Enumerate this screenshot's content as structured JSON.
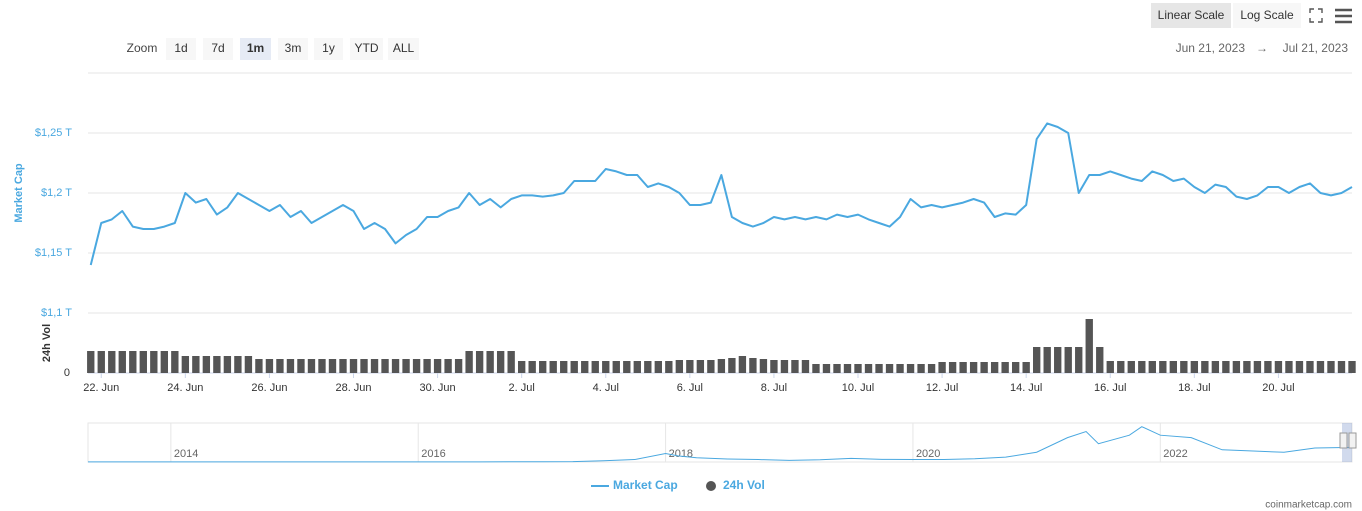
{
  "chart_data": {
    "type": "line",
    "y_title": "Market Cap",
    "y2_title": "24h Vol",
    "categories": [
      null,
      "22. Jun",
      null,
      null,
      null,
      null,
      null,
      null,
      null,
      "24. Jun",
      null,
      null,
      null,
      null,
      null,
      null,
      null,
      "26. Jun",
      null,
      null,
      null,
      null,
      null,
      null,
      null,
      "28. Jun",
      null,
      null,
      null,
      null,
      null,
      null,
      null,
      "30. Jun",
      null,
      null,
      null,
      null,
      null,
      null,
      null,
      "2. Jul",
      null,
      null,
      null,
      null,
      null,
      null,
      null,
      "4. Jul",
      null,
      null,
      null,
      null,
      null,
      null,
      null,
      "6. Jul",
      null,
      null,
      null,
      null,
      null,
      null,
      null,
      "8. Jul",
      null,
      null,
      null,
      null,
      null,
      null,
      null,
      "10. Jul",
      null,
      null,
      null,
      null,
      null,
      null,
      null,
      "12. Jul",
      null,
      null,
      null,
      null,
      null,
      null,
      null,
      "14. Jul",
      null,
      null,
      null,
      null,
      null,
      null,
      null,
      "16. Jul",
      null,
      null,
      null,
      null,
      null,
      null,
      null,
      "18. Jul",
      null,
      null,
      null,
      null,
      null,
      null,
      null,
      "20. Jul",
      null,
      null,
      null,
      null,
      null,
      null,
      null
    ],
    "series": [
      {
        "name": "Market Cap",
        "color": "#4aa8e0",
        "values": [
          1.14,
          1.175,
          1.178,
          1.185,
          1.172,
          1.17,
          1.17,
          1.172,
          1.175,
          1.2,
          1.192,
          1.195,
          1.182,
          1.188,
          1.2,
          1.195,
          1.19,
          1.185,
          1.19,
          1.18,
          1.185,
          1.175,
          1.18,
          1.185,
          1.19,
          1.185,
          1.17,
          1.175,
          1.17,
          1.158,
          1.165,
          1.17,
          1.18,
          1.18,
          1.185,
          1.188,
          1.2,
          1.19,
          1.195,
          1.188,
          1.195,
          1.198,
          1.198,
          1.197,
          1.198,
          1.2,
          1.21,
          1.21,
          1.21,
          1.22,
          1.218,
          1.215,
          1.215,
          1.205,
          1.208,
          1.205,
          1.2,
          1.19,
          1.19,
          1.192,
          1.215,
          1.18,
          1.175,
          1.172,
          1.175,
          1.18,
          1.178,
          1.18,
          1.178,
          1.18,
          1.178,
          1.182,
          1.18,
          1.182,
          1.178,
          1.175,
          1.172,
          1.18,
          1.195,
          1.188,
          1.19,
          1.188,
          1.19,
          1.192,
          1.195,
          1.192,
          1.18,
          1.183,
          1.182,
          1.19,
          1.245,
          1.258,
          1.255,
          1.25,
          1.2,
          1.215,
          1.215,
          1.218,
          1.215,
          1.212,
          1.21,
          1.218,
          1.215,
          1.21,
          1.212,
          1.205,
          1.2,
          1.207,
          1.205,
          1.197,
          1.195,
          1.198,
          1.205,
          1.205,
          1.2,
          1.205,
          1.208,
          1.2,
          1.198,
          1.2,
          1.205
        ]
      },
      {
        "name": "24h Vol",
        "color": "#555555",
        "type": "bar",
        "axis": "y2",
        "values": [
          22,
          22,
          22,
          22,
          22,
          22,
          22,
          22,
          22,
          17,
          17,
          17,
          17,
          17,
          17,
          17,
          14,
          14,
          14,
          14,
          14,
          14,
          14,
          14,
          14,
          14,
          14,
          14,
          14,
          14,
          14,
          14,
          14,
          14,
          14,
          14,
          22,
          22,
          22,
          22,
          22,
          12,
          12,
          12,
          12,
          12,
          12,
          12,
          12,
          12,
          12,
          12,
          12,
          12,
          12,
          12,
          13,
          13,
          13,
          13,
          14,
          15,
          17,
          15,
          14,
          13,
          13,
          13,
          13,
          9,
          9,
          9,
          9,
          9,
          9,
          9,
          9,
          9,
          9,
          9,
          9,
          11,
          11,
          11,
          11,
          11,
          11,
          11,
          11,
          11,
          26,
          26,
          26,
          26,
          26,
          54,
          26,
          12,
          12,
          12,
          12,
          12,
          12,
          12,
          12,
          12,
          12,
          12,
          12,
          12,
          12,
          12,
          12,
          12,
          12,
          12,
          12,
          12,
          12,
          12,
          12
        ]
      }
    ],
    "ylim": [
      1.1,
      1.3
    ],
    "yticks": [
      {
        "value": 1.1,
        "label": "$1,1 T"
      },
      {
        "value": 1.15,
        "label": "$1,15 T"
      },
      {
        "value": 1.2,
        "label": "$1,2 T"
      },
      {
        "value": 1.25,
        "label": "$1,25 T"
      }
    ],
    "y2lim": [
      0,
      60
    ],
    "y2ticks": [
      0
    ],
    "grid": true,
    "navigator": {
      "x": [
        2013.33,
        2013.5,
        2014,
        2014.5,
        2015,
        2015.5,
        2016,
        2016.5,
        2017,
        2017.25,
        2017.5,
        2017.75,
        2018,
        2018.1,
        2018.25,
        2018.5,
        2018.75,
        2019,
        2019.25,
        2019.5,
        2019.75,
        2020,
        2020.25,
        2020.5,
        2020.75,
        2021,
        2021.25,
        2021.4,
        2021.5,
        2021.75,
        2021.85,
        2022,
        2022.25,
        2022.5,
        2022.75,
        2023,
        2023.25,
        2023.55
      ],
      "values": [
        0.01,
        0.01,
        0.012,
        0.008,
        0.006,
        0.006,
        0.01,
        0.012,
        0.02,
        0.03,
        0.1,
        0.2,
        0.7,
        0.5,
        0.35,
        0.25,
        0.2,
        0.13,
        0.18,
        0.3,
        0.22,
        0.2,
        0.2,
        0.27,
        0.4,
        0.8,
        2.0,
        2.5,
        1.5,
        2.2,
        2.9,
        2.2,
        2.0,
        1.0,
        0.9,
        0.8,
        1.15,
        1.2
      ],
      "xlim": [
        2013.33,
        2023.55
      ],
      "xticks": [
        2014,
        2016,
        2018,
        2020,
        2022
      ],
      "ylim": [
        0,
        3.2
      ],
      "color": "#4aa8e0"
    }
  },
  "ui": {
    "scale_buttons": [
      "Linear Scale",
      "Log Scale"
    ],
    "active_scale": 0,
    "zoom_label": "Zoom",
    "zoom_buttons": [
      "1d",
      "7d",
      "1m",
      "3m",
      "1y",
      "YTD",
      "ALL"
    ],
    "active_zoom": 2,
    "date_from": "Jun 21, 2023",
    "date_arrow": "→",
    "date_to": "Jul 21, 2023",
    "credit": "coinmarketcap.com"
  }
}
